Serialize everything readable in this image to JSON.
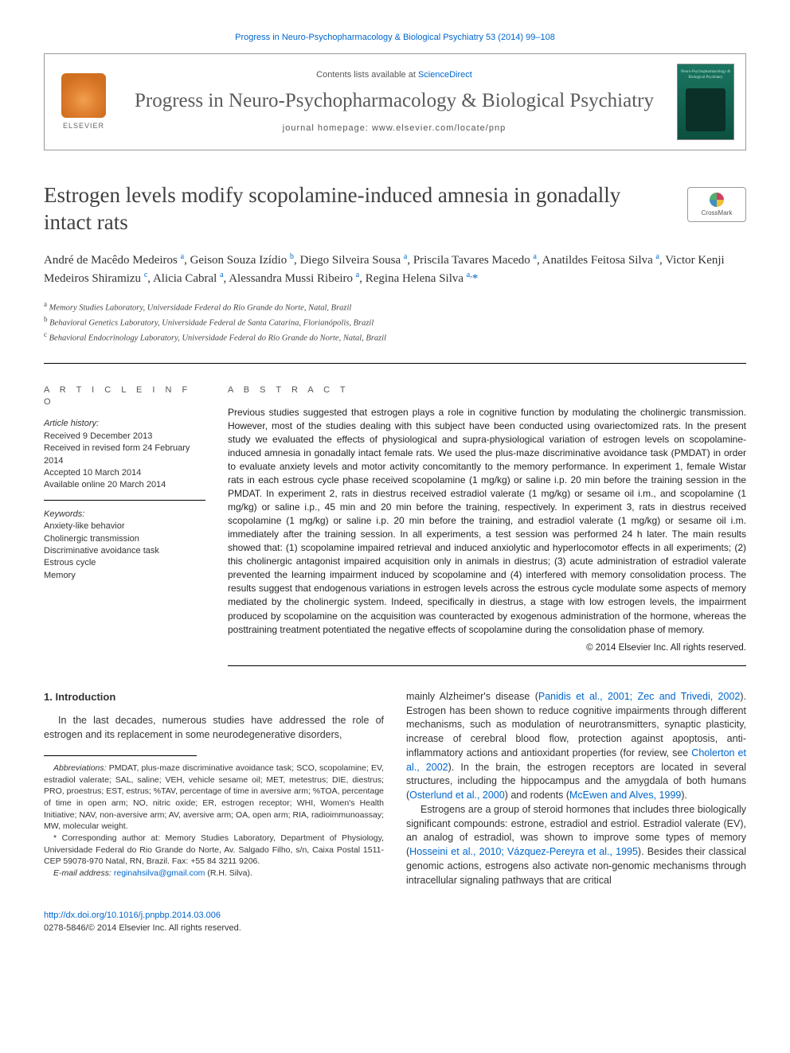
{
  "top_link_text": "Progress in Neuro-Psychopharmacology & Biological Psychiatry 53 (2014) 99–108",
  "header": {
    "contents_prefix": "Contents lists available at ",
    "contents_link": "ScienceDirect",
    "journal_name": "Progress in Neuro-Psychopharmacology & Biological Psychiatry",
    "homepage_label": "journal homepage: www.elsevier.com/locate/pnp",
    "elsevier_label": "ELSEVIER",
    "cover_title": "Neuro-Psychopharmacology & Biological Psychiatry"
  },
  "crossmark_label": "CrossMark",
  "title": "Estrogen levels modify scopolamine-induced amnesia in gonadally intact rats",
  "authors_html": "André de Macêdo Medeiros <sup>a</sup>, Geison Souza Izídio <sup>b</sup>, Diego Silveira Sousa <sup>a</sup>, Priscila Tavares Macedo <sup>a</sup>, Anatildes Feitosa Silva <sup>a</sup>, Victor Kenji Medeiros Shiramizu <sup>c</sup>, Alicia Cabral <sup>a</sup>, Alessandra Mussi Ribeiro <sup>a</sup>, Regina Helena Silva <sup>a,</sup><span class='corr'>*</span>",
  "affiliations": [
    {
      "sup": "a",
      "text": "Memory Studies Laboratory, Universidade Federal do Rio Grande do Norte, Natal, Brazil"
    },
    {
      "sup": "b",
      "text": "Behavioral Genetics Laboratory, Universidade Federal de Santa Catarina, Florianópolis, Brazil"
    },
    {
      "sup": "c",
      "text": "Behavioral Endocrinology Laboratory, Universidade Federal do Rio Grande do Norte, Natal, Brazil"
    }
  ],
  "article_info_heading": "A R T I C L E   I N F O",
  "abstract_heading": "A B S T R A C T",
  "history": {
    "label": "Article history:",
    "received": "Received 9 December 2013",
    "revised": "Received in revised form 24 February 2014",
    "accepted": "Accepted 10 March 2014",
    "online": "Available online 20 March 2014"
  },
  "keywords": {
    "label": "Keywords:",
    "items": [
      "Anxiety-like behavior",
      "Cholinergic transmission",
      "Discriminative avoidance task",
      "Estrous cycle",
      "Memory"
    ]
  },
  "abstract": "Previous studies suggested that estrogen plays a role in cognitive function by modulating the cholinergic transmission. However, most of the studies dealing with this subject have been conducted using ovariectomized rats. In the present study we evaluated the effects of physiological and supra-physiological variation of estrogen levels on scopolamine-induced amnesia in gonadally intact female rats. We used the plus-maze discriminative avoidance task (PMDAT) in order to evaluate anxiety levels and motor activity concomitantly to the memory performance. In experiment 1, female Wistar rats in each estrous cycle phase received scopolamine (1 mg/kg) or saline i.p. 20 min before the training session in the PMDAT. In experiment 2, rats in diestrus received estradiol valerate (1 mg/kg) or sesame oil i.m., and scopolamine (1 mg/kg) or saline i.p., 45 min and 20 min before the training, respectively. In experiment 3, rats in diestrus received scopolamine (1 mg/kg) or saline i.p. 20 min before the training, and estradiol valerate (1 mg/kg) or sesame oil i.m. immediately after the training session. In all experiments, a test session was performed 24 h later. The main results showed that: (1) scopolamine impaired retrieval and induced anxiolytic and hyperlocomotor effects in all experiments; (2) this cholinergic antagonist impaired acquisition only in animals in diestrus; (3) acute administration of estradiol valerate prevented the learning impairment induced by scopolamine and (4) interfered with memory consolidation process. The results suggest that endogenous variations in estrogen levels across the estrous cycle modulate some aspects of memory mediated by the cholinergic system. Indeed, specifically in diestrus, a stage with low estrogen levels, the impairment produced by scopolamine on the acquisition was counteracted by exogenous administration of the hormone, whereas the posttraining treatment potentiated the negative effects of scopolamine during the consolidation phase of memory.",
  "copyright": "© 2014 Elsevier Inc. All rights reserved.",
  "intro_heading": "1. Introduction",
  "intro_p1": "In the last decades, numerous studies have addressed the role of estrogen and its replacement in some neurodegenerative disorders,",
  "intro_col2_p1_prefix": "mainly Alzheimer's disease (",
  "intro_col2_cite1": "Panidis et al., 2001; Zec and Trivedi, 2002",
  "intro_col2_p1_mid1": "). Estrogen has been shown to reduce cognitive impairments through different mechanisms, such as modulation of neurotransmitters, synaptic plasticity, increase of cerebral blood flow, protection against apoptosis, anti-inflammatory actions and antioxidant properties (for review, see ",
  "intro_col2_cite2": "Cholerton et al., 2002",
  "intro_col2_p1_mid2": "). In the brain, the estrogen receptors are located in several structures, including the hippocampus and the amygdala of both humans (",
  "intro_col2_cite3": "Osterlund et al., 2000",
  "intro_col2_p1_mid3": ") and rodents (",
  "intro_col2_cite4": "McEwen and Alves, 1999",
  "intro_col2_p1_end": ").",
  "intro_col2_p2_prefix": "Estrogens are a group of steroid hormones that includes three biologically significant compounds: estrone, estradiol and estriol. Estradiol valerate (EV), an analog of estradiol, was shown to improve some types of memory (",
  "intro_col2_cite5": "Hosseini et al., 2010; Vázquez-Pereyra et al., 1995",
  "intro_col2_p2_end": "). Besides their classical genomic actions, estrogens also activate non-genomic mechanisms through intracellular signaling pathways that are critical",
  "footnotes": {
    "abbrev_label": "Abbreviations:",
    "abbrev_text": " PMDAT, plus-maze discriminative avoidance task; SCO, scopolamine; EV, estradiol valerate; SAL, saline; VEH, vehicle sesame oil; MET, metestrus; DIE, diestrus; PRO, proestrus; EST, estrus; %TAV, percentage of time in aversive arm; %TOA, percentage of time in open arm; NO, nitric oxide; ER, estrogen receptor; WHI, Women's Health Initiative; NAV, non-aversive arm; AV, aversive arm; OA, open arm; RIA, radioimmunoassay; MW, molecular weight.",
    "corr_text": "* Corresponding author at: Memory Studies Laboratory, Department of Physiology, Universidade Federal do Rio Grande do Norte, Av. Salgado Filho, s/n, Caixa Postal 1511-CEP 59078-970 Natal, RN, Brazil. Fax: +55 84 3211 9206.",
    "email_label": "E-mail address:",
    "email_value": " reginahsilva@gmail.com",
    "email_suffix": " (R.H. Silva)."
  },
  "bottom": {
    "doi": "http://dx.doi.org/10.1016/j.pnpbp.2014.03.006",
    "issn": "0278-5846/© 2014 Elsevier Inc. All rights reserved."
  },
  "colors": {
    "link": "#0066cc",
    "text": "#333333",
    "heading": "#555555",
    "journal": "#5a5a5a",
    "border": "#000000"
  }
}
